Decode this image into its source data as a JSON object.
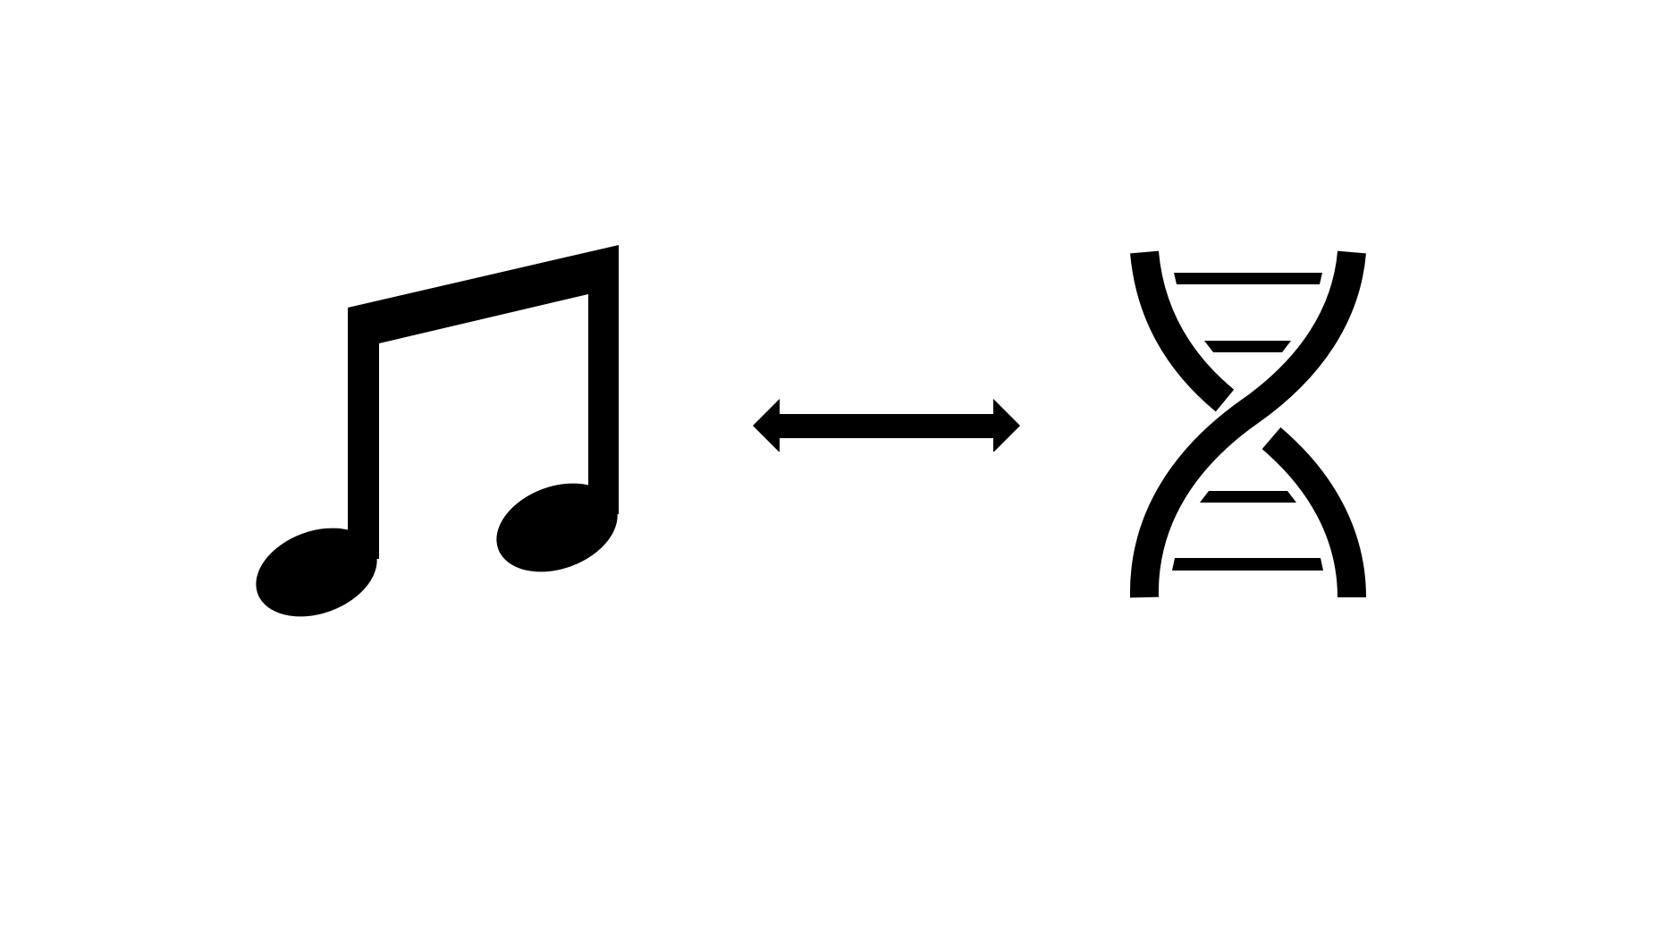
{
  "diagram": {
    "left_icon": "beamed-eighth-notes-icon",
    "connector_icon": "double-headed-arrow-icon",
    "right_icon": "dna-double-helix-icon"
  },
  "colors": {
    "background": "#ffffff",
    "ink": "#000000"
  }
}
